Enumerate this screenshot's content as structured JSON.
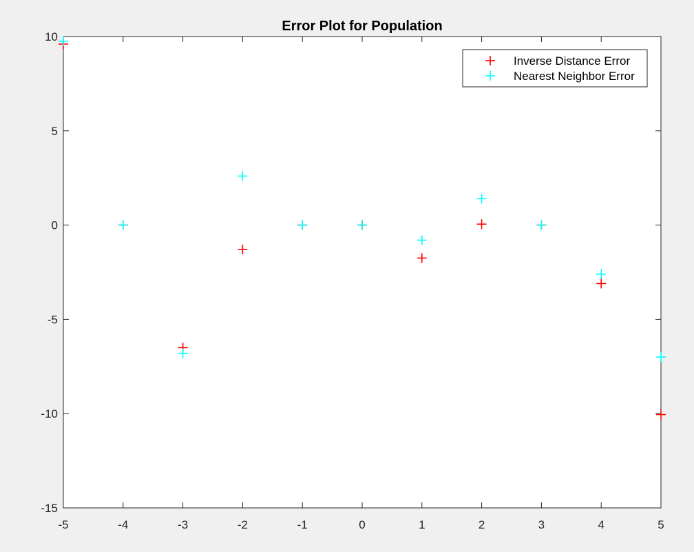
{
  "chart_data": {
    "type": "scatter",
    "title": "Error Plot for Population",
    "xlabel": "",
    "ylabel": "",
    "xlim": [
      -5,
      5
    ],
    "ylim": [
      -15,
      10
    ],
    "xticks": [
      -5,
      -4,
      -3,
      -2,
      -1,
      0,
      1,
      2,
      3,
      4,
      5
    ],
    "yticks": [
      -15,
      -10,
      -5,
      0,
      5,
      10
    ],
    "xtick_labels": [
      "-5",
      "-4",
      "-3",
      "-2",
      "-1",
      "0",
      "1",
      "2",
      "3",
      "4",
      "5"
    ],
    "ytick_labels": [
      "-15",
      "-10",
      "-5",
      "0",
      "5",
      "10"
    ],
    "grid": false,
    "legend_position": "top-right",
    "marker": "plus",
    "series": [
      {
        "name": "Inverse Distance Error",
        "color": "#ff0000",
        "x": [
          -5,
          -4,
          -3,
          -2,
          -1,
          0,
          1,
          2,
          3,
          4,
          5
        ],
        "y": [
          9.6,
          0,
          -6.5,
          -1.3,
          0,
          0,
          -1.75,
          0.05,
          0,
          -3.1,
          -10.05
        ]
      },
      {
        "name": "Nearest Neighbor Error",
        "color": "#00ffff",
        "x": [
          -5,
          -4,
          -3,
          -2,
          -1,
          0,
          1,
          2,
          3,
          4,
          5
        ],
        "y": [
          9.75,
          0,
          -6.8,
          2.6,
          0,
          0,
          -0.8,
          1.4,
          0,
          -2.6,
          -7.0
        ]
      }
    ]
  }
}
